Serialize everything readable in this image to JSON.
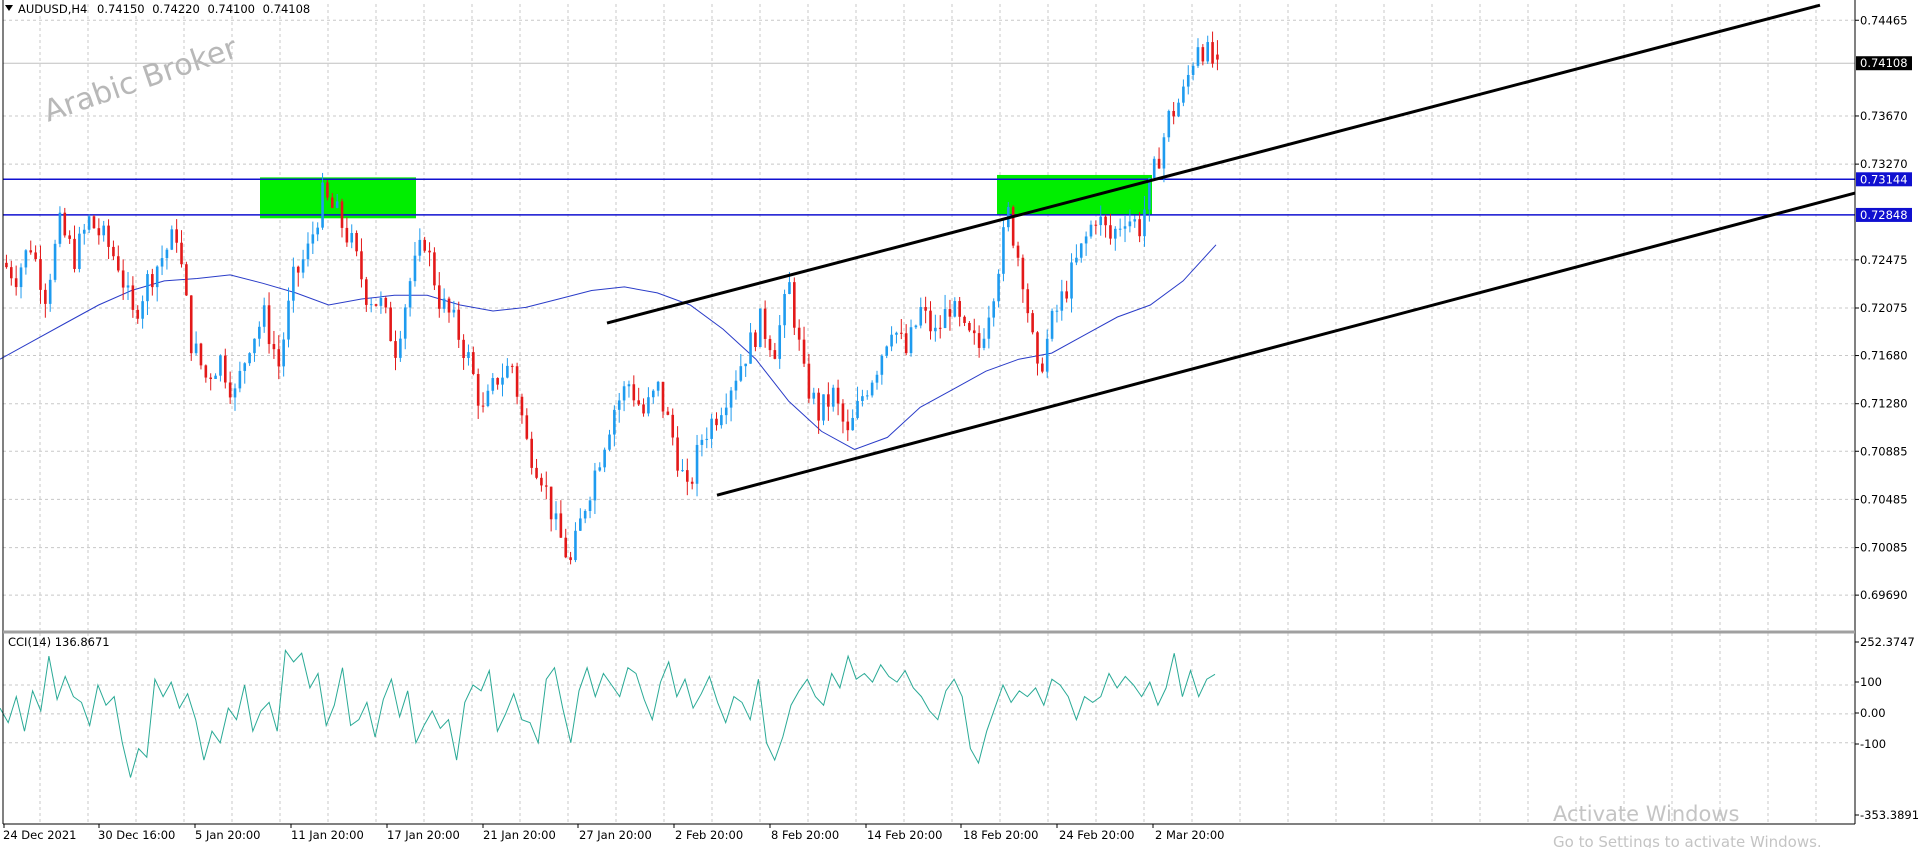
{
  "symbol_header": {
    "symbol": "AUDUSD,H4",
    "open": "0.74150",
    "high": "0.74220",
    "low": "0.74100",
    "close": "0.74108"
  },
  "watermark": "Arabic Broker",
  "windows_notice": {
    "line1": "Activate Windows",
    "line2": "Go to Settings to activate Windows."
  },
  "colors": {
    "bull": "#1e9bef",
    "bear": "#e31919",
    "ma": "#2a3cc8",
    "cci": "#2aaa96",
    "level_lines": "#1010d0",
    "zones": "#00ee00",
    "channel": "#000000",
    "grid": "#c8c8c8"
  },
  "chart_data": [
    {
      "type": "candlestick",
      "symbol": "AUDUSD",
      "timeframe": "H4",
      "ylim": [
        0.695,
        0.746
      ],
      "y_ticks": [
        "0.74465",
        "0.73670",
        "0.73270",
        "0.72475",
        "0.72075",
        "0.71680",
        "0.71280",
        "0.70885",
        "0.70485",
        "0.70085",
        "0.69690"
      ],
      "x_ticks": [
        "24 Dec 2021",
        "30 Dec 16:00",
        "5 Jan 20:00",
        "11 Jan 20:00",
        "17 Jan 20:00",
        "21 Jan 20:00",
        "27 Jan 20:00",
        "2 Feb 20:00",
        "8 Feb 20:00",
        "14 Feb 20:00",
        "18 Feb 20:00",
        "24 Feb 20:00",
        "2 Mar 20:00"
      ],
      "current_price": "0.74108",
      "levels": [
        {
          "value": 0.73144,
          "label": "0.73144"
        },
        {
          "value": 0.72848,
          "label": "0.72848"
        }
      ],
      "zones": [
        {
          "from": "11 Jan",
          "to": "17 Jan",
          "low": 0.7282,
          "high": 0.7316
        },
        {
          "from": "18 Feb",
          "to": "2 Mar",
          "low": 0.7285,
          "high": 0.7318
        }
      ],
      "channel_lines": [
        {
          "role": "upper",
          "points": [
            [
              0.7195,
              "27 Jan"
            ],
            [
              0.746,
              "end"
            ]
          ]
        },
        {
          "role": "lower",
          "points": [
            [
              0.7052,
              "2 Feb"
            ],
            [
              0.7305,
              "end"
            ]
          ]
        }
      ],
      "price_path": [
        0.7245,
        0.7235,
        0.726,
        0.722,
        0.7275,
        0.725,
        0.728,
        0.7265,
        0.7245,
        0.72,
        0.723,
        0.725,
        0.727,
        0.718,
        0.715,
        0.7165,
        0.7135,
        0.718,
        0.72,
        0.716,
        0.723,
        0.7255,
        0.73,
        0.7285,
        0.726,
        0.722,
        0.721,
        0.7175,
        0.723,
        0.7265,
        0.7215,
        0.7195,
        0.7165,
        0.712,
        0.715,
        0.716,
        0.7095,
        0.707,
        0.7025,
        0.6995,
        0.7045,
        0.7085,
        0.7125,
        0.7145,
        0.712,
        0.714,
        0.71,
        0.7052,
        0.71,
        0.712,
        0.7145,
        0.717,
        0.7195,
        0.7175,
        0.7225,
        0.715,
        0.712,
        0.7135,
        0.71,
        0.7135,
        0.716,
        0.7195,
        0.717,
        0.7205,
        0.7185,
        0.721,
        0.7185,
        0.7175,
        0.7225,
        0.7285,
        0.7235,
        0.715,
        0.7195,
        0.7225,
        0.7255,
        0.7285,
        0.7265,
        0.7285,
        0.7275,
        0.732,
        0.7365,
        0.7385,
        0.743,
        0.7411
      ],
      "series": [
        {
          "name": "MA",
          "values": [
            0.7165,
            0.718,
            0.7195,
            0.721,
            0.7222,
            0.723,
            0.7232,
            0.7235,
            0.7228,
            0.722,
            0.721,
            0.7215,
            0.7218,
            0.7218,
            0.721,
            0.7205,
            0.7208,
            0.7215,
            0.7222,
            0.7225,
            0.722,
            0.721,
            0.719,
            0.7165,
            0.713,
            0.7105,
            0.709,
            0.71,
            0.7125,
            0.714,
            0.7155,
            0.7165,
            0.717,
            0.7185,
            0.72,
            0.721,
            0.723,
            0.726
          ]
        }
      ]
    },
    {
      "type": "line",
      "title": "CCI(14) 136.8671",
      "ylim": [
        -353.3891,
        252.3747
      ],
      "y_ticks": [
        "252.3747",
        "100",
        "0.00",
        "-100",
        "-353.3891"
      ],
      "series": [
        {
          "name": "CCI(14)",
          "values": [
            20,
            -30,
            60,
            -60,
            80,
            10,
            200,
            50,
            130,
            60,
            40,
            -40,
            100,
            30,
            60,
            -100,
            -220,
            -120,
            -150,
            120,
            60,
            110,
            20,
            70,
            -20,
            -160,
            -60,
            -100,
            20,
            -20,
            100,
            -60,
            10,
            40,
            -60,
            220,
            180,
            210,
            90,
            140,
            -40,
            30,
            160,
            -40,
            -20,
            40,
            -80,
            50,
            120,
            -10,
            80,
            -100,
            -40,
            10,
            -50,
            -20,
            -160,
            40,
            100,
            80,
            150,
            -60,
            0,
            70,
            -20,
            -30,
            -100,
            120,
            160,
            20,
            -100,
            80,
            160,
            60,
            140,
            100,
            60,
            160,
            140,
            50,
            -20,
            110,
            180,
            60,
            120,
            20,
            70,
            130,
            40,
            -30,
            60,
            40,
            -20,
            120,
            -100,
            -160,
            -80,
            30,
            80,
            120,
            60,
            30,
            140,
            90,
            200,
            120,
            140,
            110,
            170,
            130,
            110,
            150,
            90,
            60,
            10,
            -20,
            80,
            120,
            60,
            -120,
            -170,
            -60,
            20,
            100,
            40,
            80,
            60,
            90,
            30,
            120,
            100,
            60,
            -20,
            60,
            40,
            60,
            140,
            90,
            130,
            100,
            60,
            110,
            30,
            90,
            210,
            60,
            150,
            60,
            120,
            137
          ]
        }
      ]
    }
  ]
}
